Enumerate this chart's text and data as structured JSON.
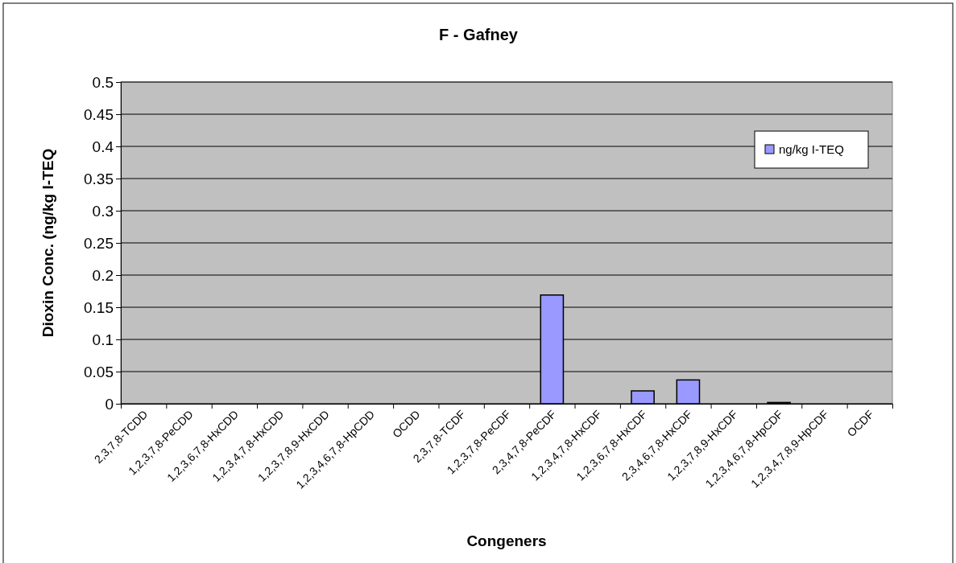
{
  "chart_data": {
    "type": "bar",
    "title": "F - Gafney",
    "xlabel": "Congeners",
    "ylabel": "Dioxin Conc. (ng/kg I-TEQ",
    "categories": [
      "2,3,7,8-TCDD",
      "1,2,3,7,8-PeCDD",
      "1,2,3,6,7,8-HxCDD",
      "1,2,3,4,7,8-HxCDD",
      "1,2,3,7,8,9-HxCDD",
      "1,2,3,4,6,7,8-HpCDD",
      "OCDD",
      "2,3,7,8-TCDF",
      "1,2,3,7,8-PeCDF",
      "2,3,4,7,8-PeCDF",
      "1,2,3,4,7,8-HxCDF",
      "1,2,3,6,7,8-HxCDF",
      "2,3,4,6,7,8-HxCDF",
      "1,2,3,7,8,9-HxCDF",
      "1,2,3,4,6,7,8-HpCDF",
      "1,2,3,4,7,8,9-HpCDF",
      "OCDF"
    ],
    "series": [
      {
        "name": "ng/kg I-TEQ",
        "color": "#9999ff",
        "values": [
          0,
          0,
          0,
          0,
          0,
          0,
          0,
          0,
          0,
          0.169,
          0,
          0.02,
          0.037,
          0,
          0.002,
          0,
          0
        ]
      }
    ],
    "ylim": [
      0,
      0.5
    ],
    "yticks": [
      0,
      0.05,
      0.1,
      0.15,
      0.2,
      0.25,
      0.3,
      0.35,
      0.4,
      0.45,
      0.5
    ],
    "grid": "y",
    "legend": "top right"
  }
}
